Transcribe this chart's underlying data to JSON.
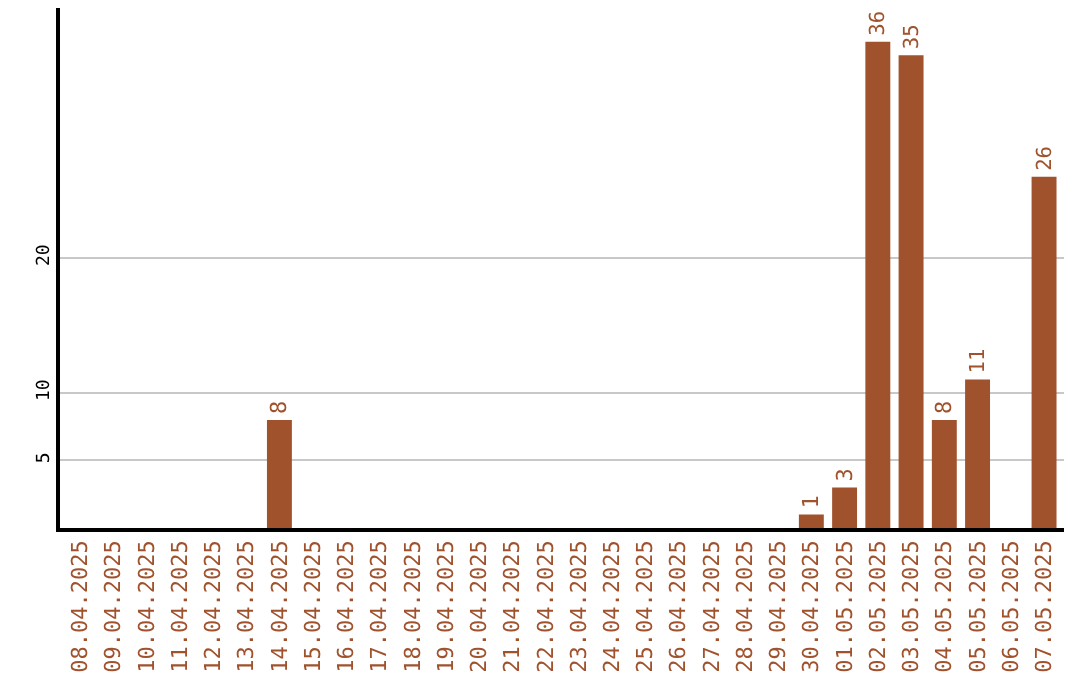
{
  "chart_data": {
    "type": "bar",
    "categories": [
      "08.04.2025",
      "09.04.2025",
      "10.04.2025",
      "11.04.2025",
      "12.04.2025",
      "13.04.2025",
      "14.04.2025",
      "15.04.2025",
      "16.04.2025",
      "17.04.2025",
      "18.04.2025",
      "19.04.2025",
      "20.04.2025",
      "21.04.2025",
      "22.04.2025",
      "23.04.2025",
      "24.04.2025",
      "25.04.2025",
      "26.04.2025",
      "27.04.2025",
      "28.04.2025",
      "29.04.2025",
      "30.04.2025",
      "01.05.2025",
      "02.05.2025",
      "03.05.2025",
      "04.05.2025",
      "05.05.2025",
      "06.05.2025",
      "07.05.2025"
    ],
    "values": [
      0,
      0,
      0,
      0,
      0,
      0,
      8,
      0,
      0,
      0,
      0,
      0,
      0,
      0,
      0,
      0,
      0,
      0,
      0,
      0,
      0,
      0,
      1,
      3,
      36,
      35,
      8,
      11,
      0,
      26
    ],
    "value_labels": [
      null,
      null,
      null,
      null,
      null,
      null,
      "8",
      null,
      null,
      null,
      null,
      null,
      null,
      null,
      null,
      null,
      null,
      null,
      null,
      null,
      null,
      null,
      "1",
      "3",
      "36",
      "35",
      "8",
      "11",
      null,
      "26"
    ],
    "color": "#a0522d",
    "ylim": [
      0,
      38.5
    ],
    "yticks": [
      5,
      10,
      20
    ],
    "grid": "y",
    "legend": false
  }
}
